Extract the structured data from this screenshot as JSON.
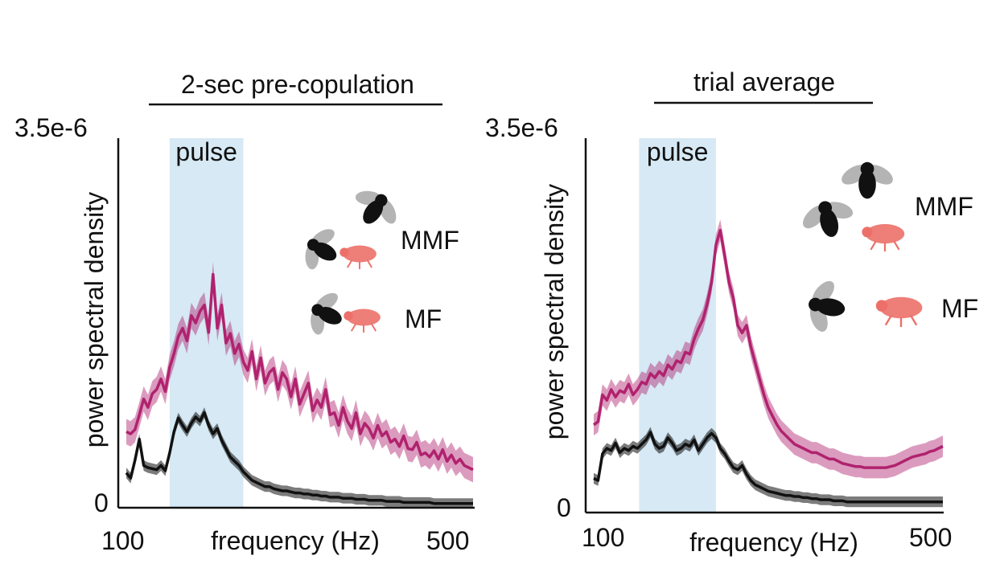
{
  "colors": {
    "mmf": "#b0226e",
    "mf": "#111111",
    "pulse_band": "#d6e9f4",
    "pulse_text": "#6cb8e0",
    "mmf_fly_female": "#ec7069"
  },
  "chart_data": [
    {
      "type": "line",
      "title": "2-sec pre-copulation",
      "xlabel": "frequency (Hz)",
      "ylabel": "power spectral density",
      "xlim": [
        100,
        500
      ],
      "ylim": [
        0,
        3.5e-06
      ],
      "x_tick_labels": [
        "100",
        "500"
      ],
      "y_tick_labels": [
        "0",
        "3.5e-6"
      ],
      "band": {
        "label": "pulse",
        "x_range": [
          150,
          235
        ]
      },
      "icons": [
        "flies-mmf-icon",
        "flies-mf-icon"
      ],
      "legend": [
        "MMF",
        "MF"
      ],
      "series": [
        {
          "name": "MMF",
          "x": [
            100,
            105,
            110,
            115,
            120,
            125,
            130,
            135,
            140,
            145,
            150,
            155,
            160,
            165,
            170,
            175,
            180,
            185,
            190,
            195,
            200,
            205,
            210,
            215,
            220,
            225,
            230,
            235,
            240,
            245,
            250,
            255,
            260,
            265,
            270,
            275,
            280,
            285,
            290,
            295,
            300,
            305,
            310,
            315,
            320,
            325,
            330,
            335,
            340,
            345,
            350,
            355,
            360,
            365,
            370,
            375,
            380,
            385,
            390,
            395,
            400,
            405,
            410,
            415,
            420,
            425,
            430,
            435,
            440,
            445,
            450,
            455,
            460,
            465,
            470,
            475,
            480,
            485,
            490,
            495,
            500
          ],
          "y": [
            0.72,
            0.7,
            0.74,
            0.88,
            1.03,
            0.95,
            1.08,
            1.12,
            1.22,
            1.1,
            1.33,
            1.46,
            1.62,
            1.7,
            1.58,
            1.82,
            1.75,
            1.86,
            1.92,
            1.66,
            2.21,
            1.7,
            1.92,
            1.56,
            1.65,
            1.46,
            1.55,
            1.38,
            1.3,
            1.48,
            1.22,
            1.42,
            1.18,
            1.28,
            1.32,
            1.12,
            1.28,
            1.22,
            1.05,
            1.22,
            0.98,
            1.08,
            1.18,
            0.92,
            1.02,
            0.95,
            1.12,
            0.88,
            0.9,
            0.78,
            0.95,
            0.82,
            0.75,
            0.9,
            0.7,
            0.8,
            0.75,
            0.66,
            0.78,
            0.68,
            0.72,
            0.62,
            0.65,
            0.58,
            0.68,
            0.56,
            0.55,
            0.62,
            0.5,
            0.52,
            0.48,
            0.54,
            0.46,
            0.55,
            0.44,
            0.5,
            0.42,
            0.46,
            0.4,
            0.38,
            0.36
          ],
          "err": 0.12
        },
        {
          "name": "MF",
          "x": [
            100,
            105,
            110,
            115,
            120,
            125,
            130,
            135,
            140,
            145,
            150,
            155,
            160,
            165,
            170,
            175,
            180,
            185,
            190,
            195,
            200,
            205,
            210,
            215,
            220,
            225,
            230,
            235,
            240,
            245,
            250,
            255,
            260,
            265,
            270,
            275,
            280,
            285,
            290,
            295,
            300,
            305,
            310,
            315,
            320,
            325,
            330,
            335,
            340,
            345,
            350,
            355,
            360,
            365,
            370,
            375,
            380,
            385,
            390,
            395,
            400,
            405,
            410,
            415,
            420,
            425,
            430,
            435,
            440,
            445,
            450,
            455,
            460,
            465,
            470,
            475,
            480,
            485,
            490,
            495,
            500
          ],
          "y": [
            0.33,
            0.28,
            0.45,
            0.65,
            0.4,
            0.38,
            0.37,
            0.36,
            0.4,
            0.35,
            0.52,
            0.72,
            0.85,
            0.78,
            0.72,
            0.8,
            0.86,
            0.82,
            0.9,
            0.78,
            0.7,
            0.75,
            0.64,
            0.56,
            0.48,
            0.44,
            0.4,
            0.34,
            0.3,
            0.26,
            0.24,
            0.22,
            0.2,
            0.2,
            0.18,
            0.17,
            0.16,
            0.16,
            0.15,
            0.14,
            0.14,
            0.13,
            0.13,
            0.12,
            0.12,
            0.11,
            0.11,
            0.1,
            0.1,
            0.1,
            0.09,
            0.09,
            0.09,
            0.08,
            0.08,
            0.08,
            0.07,
            0.07,
            0.07,
            0.07,
            0.06,
            0.06,
            0.06,
            0.06,
            0.05,
            0.05,
            0.05,
            0.05,
            0.05,
            0.05,
            0.05,
            0.04,
            0.04,
            0.04,
            0.04,
            0.04,
            0.04,
            0.04,
            0.04,
            0.04,
            0.04
          ],
          "err": 0.05
        }
      ]
    },
    {
      "type": "line",
      "title": "trial average",
      "xlabel": "frequency (Hz)",
      "ylabel": "power spectral density",
      "xlim": [
        100,
        500
      ],
      "ylim": [
        0,
        3.5e-06
      ],
      "x_tick_labels": [
        "100",
        "500"
      ],
      "y_tick_labels": [
        "0",
        "3.5e-6"
      ],
      "band": {
        "label": "pulse",
        "x_range": [
          152,
          240
        ]
      },
      "icons": [
        "flies-mmf-icon",
        "flies-mf-icon"
      ],
      "legend": [
        "MMF",
        "MF"
      ],
      "series": [
        {
          "name": "MMF",
          "x": [
            100,
            105,
            110,
            115,
            120,
            125,
            130,
            135,
            140,
            145,
            150,
            155,
            160,
            165,
            170,
            175,
            180,
            185,
            190,
            195,
            200,
            205,
            210,
            215,
            220,
            225,
            230,
            235,
            240,
            245,
            250,
            255,
            260,
            265,
            270,
            275,
            280,
            285,
            290,
            295,
            300,
            305,
            310,
            315,
            320,
            325,
            330,
            335,
            340,
            345,
            350,
            355,
            360,
            365,
            370,
            375,
            380,
            385,
            390,
            395,
            400,
            405,
            410,
            415,
            420,
            425,
            430,
            435,
            440,
            445,
            450,
            455,
            460,
            465,
            470,
            475,
            480,
            485,
            490,
            495,
            500
          ],
          "y": [
            0.82,
            0.85,
            1.1,
            1.05,
            1.15,
            1.08,
            1.14,
            1.12,
            1.2,
            1.1,
            1.15,
            1.22,
            1.2,
            1.3,
            1.26,
            1.32,
            1.28,
            1.38,
            1.34,
            1.42,
            1.4,
            1.5,
            1.48,
            1.62,
            1.72,
            1.8,
            1.95,
            2.15,
            2.5,
            2.64,
            2.4,
            2.15,
            2.0,
            1.75,
            1.68,
            1.75,
            1.55,
            1.4,
            1.25,
            1.1,
            0.98,
            0.9,
            0.82,
            0.76,
            0.72,
            0.68,
            0.64,
            0.62,
            0.6,
            0.58,
            0.56,
            0.56,
            0.54,
            0.52,
            0.5,
            0.5,
            0.48,
            0.46,
            0.45,
            0.44,
            0.43,
            0.43,
            0.42,
            0.42,
            0.42,
            0.42,
            0.42,
            0.42,
            0.43,
            0.44,
            0.46,
            0.48,
            0.5,
            0.52,
            0.53,
            0.54,
            0.55,
            0.57,
            0.58,
            0.6,
            0.62
          ],
          "err": 0.1
        },
        {
          "name": "MF",
          "x": [
            100,
            105,
            110,
            115,
            120,
            125,
            130,
            135,
            140,
            145,
            150,
            155,
            160,
            165,
            170,
            175,
            180,
            185,
            190,
            195,
            200,
            205,
            210,
            215,
            220,
            225,
            230,
            235,
            240,
            245,
            250,
            255,
            260,
            265,
            270,
            275,
            280,
            285,
            290,
            295,
            300,
            305,
            310,
            315,
            320,
            325,
            330,
            335,
            340,
            345,
            350,
            355,
            360,
            365,
            370,
            375,
            380,
            385,
            390,
            395,
            400,
            405,
            410,
            415,
            420,
            425,
            430,
            435,
            440,
            445,
            450,
            455,
            460,
            465,
            470,
            475,
            480,
            485,
            490,
            495,
            500
          ],
          "y": [
            0.32,
            0.3,
            0.55,
            0.6,
            0.58,
            0.65,
            0.56,
            0.6,
            0.58,
            0.62,
            0.6,
            0.64,
            0.68,
            0.75,
            0.64,
            0.6,
            0.62,
            0.7,
            0.65,
            0.58,
            0.6,
            0.64,
            0.62,
            0.68,
            0.58,
            0.64,
            0.7,
            0.74,
            0.7,
            0.6,
            0.55,
            0.48,
            0.42,
            0.4,
            0.44,
            0.36,
            0.3,
            0.26,
            0.24,
            0.22,
            0.2,
            0.19,
            0.18,
            0.17,
            0.16,
            0.16,
            0.15,
            0.15,
            0.14,
            0.14,
            0.13,
            0.13,
            0.12,
            0.12,
            0.12,
            0.11,
            0.11,
            0.11,
            0.1,
            0.1,
            0.1,
            0.1,
            0.1,
            0.1,
            0.1,
            0.1,
            0.1,
            0.1,
            0.1,
            0.1,
            0.1,
            0.1,
            0.1,
            0.1,
            0.1,
            0.1,
            0.1,
            0.1,
            0.1,
            0.1,
            0.1
          ],
          "err": 0.05
        }
      ]
    }
  ]
}
